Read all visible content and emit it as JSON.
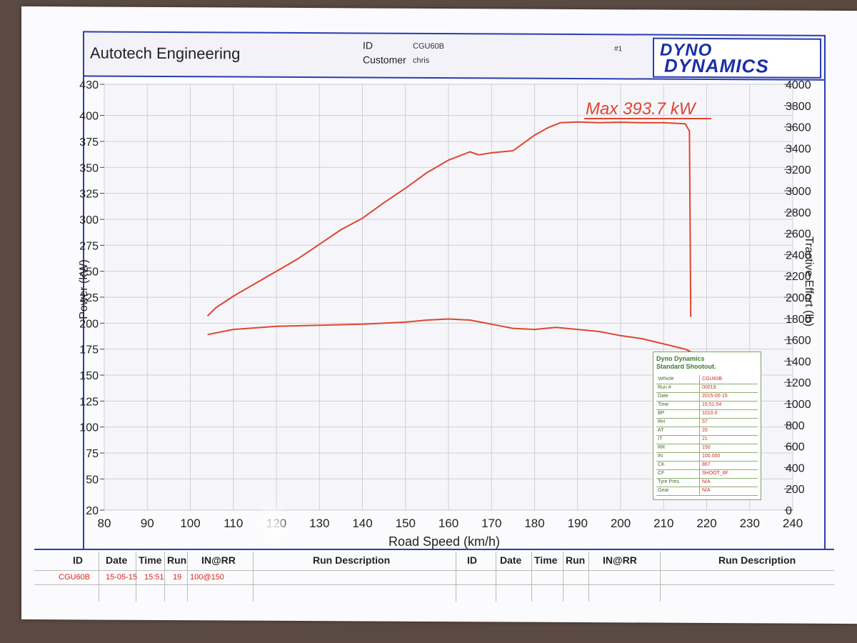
{
  "header": {
    "company": "Autotech Engineering",
    "id_label": "ID",
    "id_value": "CGU60B",
    "customer_label": "Customer",
    "customer_value": "chris",
    "sheet_number": "#1",
    "logo_line1": "DYNO",
    "logo_line2": "DYNAMICS"
  },
  "colors": {
    "curve": "#e0452e",
    "frame": "#2a3db0",
    "grid": "#cfcfd8",
    "accent_text": "#d62a1e"
  },
  "chart_data": {
    "type": "line",
    "xlabel": "Road Speed (km/h)",
    "ylabel": "Power (kW)",
    "y2label": "Tractive Effort (lb)",
    "annotation": "Max 393.7 kW",
    "xlim": [
      80,
      240
    ],
    "ylim": [
      20,
      430
    ],
    "y2lim": [
      0,
      4000
    ],
    "x_ticks": [
      "80",
      "90",
      "100",
      "110",
      "120",
      "130",
      "140",
      "150",
      "160",
      "170",
      "180",
      "190",
      "200",
      "210",
      "220",
      "230",
      "240"
    ],
    "y_ticks": [
      "20",
      "50",
      "75",
      "100",
      "125",
      "150",
      "175",
      "200",
      "225",
      "250",
      "275",
      "300",
      "325",
      "350",
      "375",
      "400",
      "430"
    ],
    "y2_ticks": [
      "0",
      "200",
      "400",
      "600",
      "800",
      "1000",
      "1200",
      "1400",
      "1600",
      "1800",
      "2000",
      "2200",
      "2400",
      "2600",
      "2800",
      "3000",
      "3200",
      "3400",
      "3600",
      "3800",
      "4000"
    ],
    "grid": true,
    "series": [
      {
        "axis": "left",
        "x": [
          104,
          106,
          110,
          115,
          120,
          125,
          130,
          135,
          140,
          145,
          150,
          155,
          160,
          165,
          167,
          170,
          175,
          180,
          183,
          186,
          190,
          195,
          200,
          205,
          210,
          215,
          216,
          216.3
        ],
        "y": [
          207,
          215,
          226,
          238,
          250,
          262,
          276,
          290,
          301,
          316,
          330,
          345,
          357,
          365,
          362,
          364,
          366,
          381,
          388,
          393,
          393.7,
          393,
          393.5,
          393,
          393,
          392,
          385,
          206
        ]
      },
      {
        "axis": "left",
        "x": [
          104,
          110,
          120,
          130,
          140,
          150,
          155,
          160,
          165,
          170,
          175,
          180,
          185,
          190,
          195,
          200,
          205,
          210,
          215,
          220
        ],
        "y": [
          189,
          194,
          197,
          198,
          199,
          201,
          203,
          204,
          203,
          199,
          195,
          194,
          196,
          194,
          192,
          188,
          185,
          180,
          175,
          165
        ]
      }
    ]
  },
  "standard_box": {
    "title1": "Dyno Dynamics",
    "title2": "Standard Shootout.",
    "rows": [
      {
        "k": "Vehicle",
        "v": "CGU60B"
      },
      {
        "k": "Run #",
        "v": "00019"
      },
      {
        "k": "Date",
        "v": "2015-05-15"
      },
      {
        "k": "Time",
        "v": "15:51:54"
      },
      {
        "k": "BP",
        "v": "1010.0"
      },
      {
        "k": "RH",
        "v": "57"
      },
      {
        "k": "AT",
        "v": "20"
      },
      {
        "k": "IT",
        "v": "21"
      },
      {
        "k": "RR",
        "v": "150"
      },
      {
        "k": "IN",
        "v": "100.000"
      },
      {
        "k": "CK",
        "v": "867"
      },
      {
        "k": "CF",
        "v": "SHOOT_6F"
      },
      {
        "k": "Tyre Pres.",
        "v": "N/A"
      },
      {
        "k": "Gear",
        "v": "N/A"
      }
    ]
  },
  "run_table": {
    "headers": [
      "ID",
      "Date",
      "Time",
      "Run",
      "IN@RR",
      "Run Description",
      "ID",
      "Date",
      "Time",
      "Run",
      "IN@RR",
      "Run Description"
    ],
    "row": [
      "CGU60B",
      "15-05-15",
      "15:51",
      "19",
      "100@150",
      ""
    ]
  }
}
